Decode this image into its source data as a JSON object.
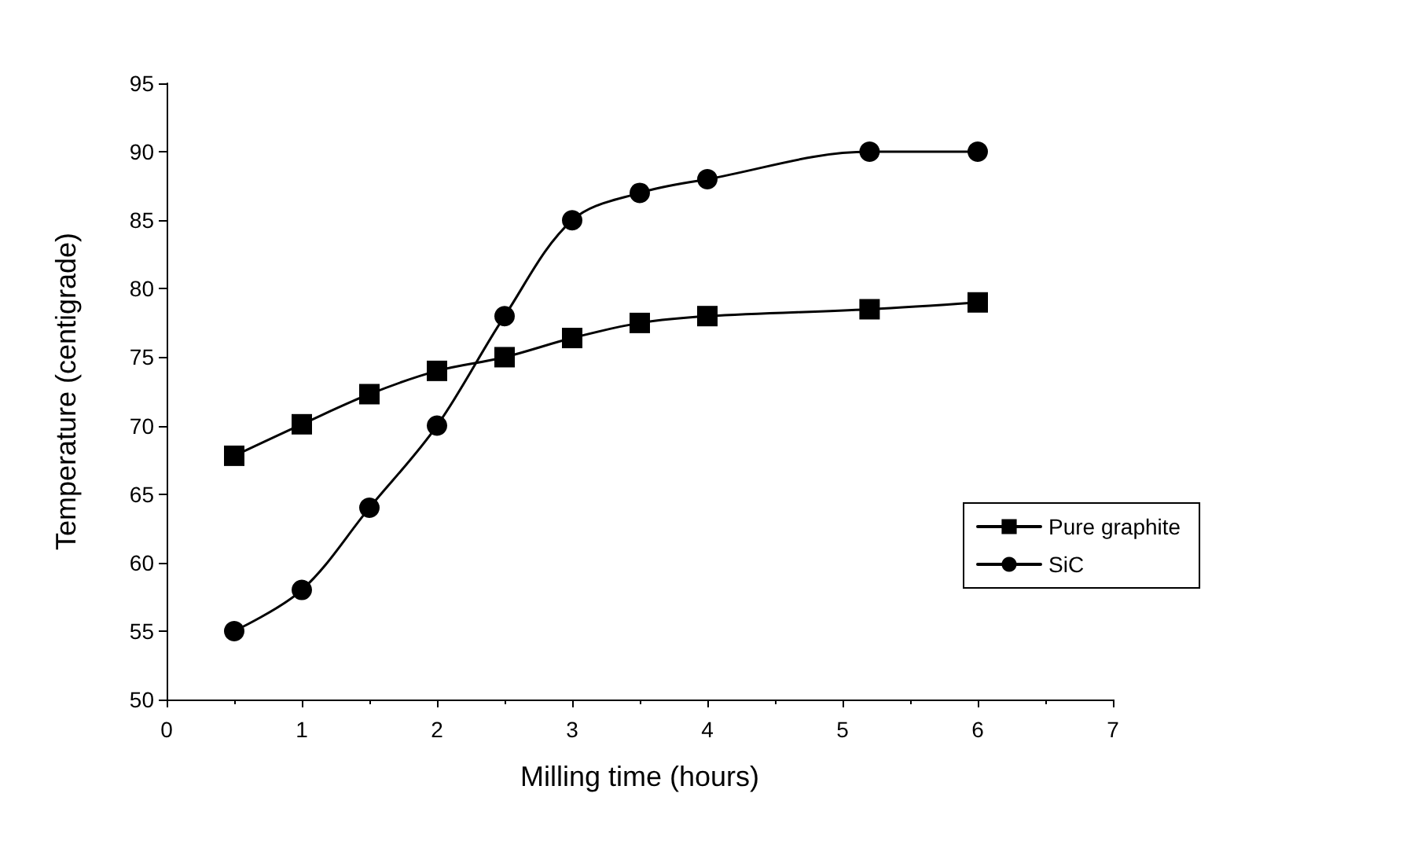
{
  "chart_data": {
    "type": "line",
    "xlabel": "Milling time (hours)",
    "ylabel": "Temperature (centigrade)",
    "xlim": [
      0,
      7
    ],
    "xticks": [
      0,
      1,
      2,
      3,
      4,
      5,
      6,
      7
    ],
    "ylim": [
      50,
      95
    ],
    "yticks": [
      50,
      55,
      60,
      65,
      70,
      75,
      80,
      85,
      90,
      95
    ],
    "grid": false,
    "legend": "right",
    "line_style": "solid",
    "series": [
      {
        "name": "Pure graphite",
        "color": "#000000",
        "marker": "square",
        "x": [
          0.5,
          1,
          1.5,
          2,
          2.5,
          3,
          3.5,
          4,
          5.2,
          6
        ],
        "values": [
          67.8,
          70.1,
          72.3,
          74,
          75,
          76.4,
          77.5,
          78,
          78.5,
          79
        ]
      },
      {
        "name": "SiC",
        "color": "#000000",
        "marker": "circle",
        "x": [
          0.5,
          1,
          1.5,
          2,
          2.5,
          3,
          3.5,
          4,
          5.2,
          6
        ],
        "values": [
          55,
          58,
          64,
          70,
          78,
          85,
          87,
          88,
          90,
          90
        ]
      }
    ]
  }
}
